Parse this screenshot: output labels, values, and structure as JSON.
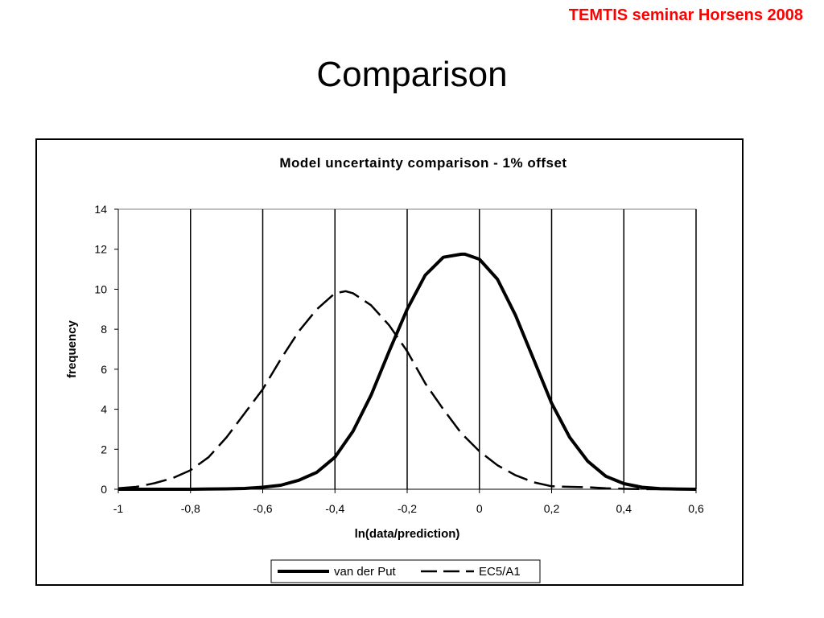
{
  "slide": {
    "header_note": "TEMTIS seminar Horsens 2008",
    "title": "Comparison"
  },
  "colors": {
    "header_note": "#ff0000",
    "line": "#000000",
    "gridline": "#000000"
  },
  "chart_data": {
    "type": "line",
    "title": "Model uncertainty comparison - 1% offset",
    "xlabel": "ln(data/prediction)",
    "ylabel": "frequency",
    "xlim": [
      -1,
      0.6
    ],
    "ylim": [
      0,
      14
    ],
    "x_ticks": [
      -1,
      -0.8,
      -0.6,
      -0.4,
      -0.2,
      0,
      0.2,
      0.4,
      0.6
    ],
    "x_tick_labels": [
      "-1",
      "-0,8",
      "-0,6",
      "-0,4",
      "-0,2",
      "0",
      "0,2",
      "0,4",
      "0,6"
    ],
    "y_ticks": [
      0,
      2,
      4,
      6,
      8,
      10,
      12,
      14
    ],
    "y_tick_labels": [
      "0",
      "2",
      "4",
      "6",
      "8",
      "10",
      "12",
      "14"
    ],
    "vertical_grid": true,
    "legend_position": "bottom",
    "series": [
      {
        "name": "van der Put",
        "style": "solid",
        "x": [
          -1,
          -0.9,
          -0.8,
          -0.7,
          -0.65,
          -0.6,
          -0.55,
          -0.5,
          -0.45,
          -0.4,
          -0.35,
          -0.3,
          -0.25,
          -0.2,
          -0.15,
          -0.1,
          -0.05,
          -0.04,
          0,
          0.05,
          0.1,
          0.15,
          0.2,
          0.25,
          0.3,
          0.35,
          0.4,
          0.45,
          0.5,
          0.55,
          0.6
        ],
        "y": [
          0,
          0,
          0,
          0.02,
          0.04,
          0.1,
          0.2,
          0.45,
          0.85,
          1.6,
          2.9,
          4.7,
          6.9,
          9.0,
          10.7,
          11.6,
          11.75,
          11.75,
          11.5,
          10.5,
          8.7,
          6.5,
          4.3,
          2.6,
          1.4,
          0.65,
          0.28,
          0.1,
          0.03,
          0.01,
          0
        ],
        "color": "#000000"
      },
      {
        "name": "EC5/A1",
        "style": "dashed",
        "x": [
          -1,
          -0.95,
          -0.9,
          -0.85,
          -0.8,
          -0.75,
          -0.7,
          -0.65,
          -0.6,
          -0.55,
          -0.5,
          -0.45,
          -0.4,
          -0.37,
          -0.35,
          -0.3,
          -0.25,
          -0.2,
          -0.15,
          -0.1,
          -0.05,
          0,
          0.05,
          0.1,
          0.15,
          0.2,
          0.25,
          0.3,
          0.35,
          0.4,
          0.45,
          0.5,
          0.55,
          0.6
        ],
        "y": [
          0.05,
          0.12,
          0.3,
          0.55,
          0.95,
          1.6,
          2.6,
          3.8,
          5.0,
          6.5,
          7.9,
          9.0,
          9.8,
          9.9,
          9.8,
          9.2,
          8.2,
          6.9,
          5.3,
          4.0,
          2.8,
          1.9,
          1.2,
          0.7,
          0.35,
          0.15,
          0.12,
          0.1,
          0.05,
          0.02,
          0.01,
          0,
          0,
          0
        ],
        "color": "#000000"
      }
    ]
  }
}
